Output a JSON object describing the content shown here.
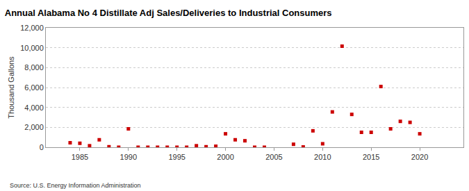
{
  "chart_data": {
    "type": "scatter",
    "title": "Annual Alabama No 4 Distillate Adj Sales/Deliveries to Industrial Consumers",
    "y_label": "Thousand Gallons",
    "annotations": [
      {
        "text": "Source: U.S. Energy Information Administration"
      }
    ],
    "x": [
      1984,
      1985,
      1986,
      1987,
      1988,
      1989,
      1990,
      1991,
      1992,
      1993,
      1994,
      1995,
      1996,
      1997,
      1998,
      1999,
      2000,
      2001,
      2002,
      2003,
      2004,
      2007,
      2008,
      2009,
      2010,
      2011,
      2012,
      2013,
      2014,
      2015,
      2016,
      2017,
      2018,
      2019,
      2020
    ],
    "values": [
      450,
      400,
      150,
      750,
      50,
      0,
      1850,
      0,
      0,
      0,
      0,
      0,
      0,
      150,
      50,
      100,
      1350,
      750,
      650,
      0,
      0,
      300,
      30,
      1650,
      350,
      3550,
      10150,
      3300,
      1500,
      1500,
      6100,
      1850,
      2600,
      2500,
      1350
    ],
    "color": "#cc0000",
    "marker": "square",
    "xlim": [
      1981.5,
      2024.5
    ],
    "xticks": [
      1985,
      1990,
      1995,
      2000,
      2005,
      2010,
      2015,
      2020
    ],
    "ylim": [
      0,
      12000
    ],
    "yticks": [
      0,
      {
        "value": 2000,
        "label": "2,000"
      },
      {
        "value": 4000,
        "label": "4,000"
      },
      {
        "value": 6000,
        "label": "6,000"
      },
      {
        "value": 8000,
        "label": "8,000"
      },
      {
        "value": 10000,
        "label": "10,000"
      },
      {
        "value": 12000,
        "label": "12,000"
      }
    ],
    "grid": true
  }
}
